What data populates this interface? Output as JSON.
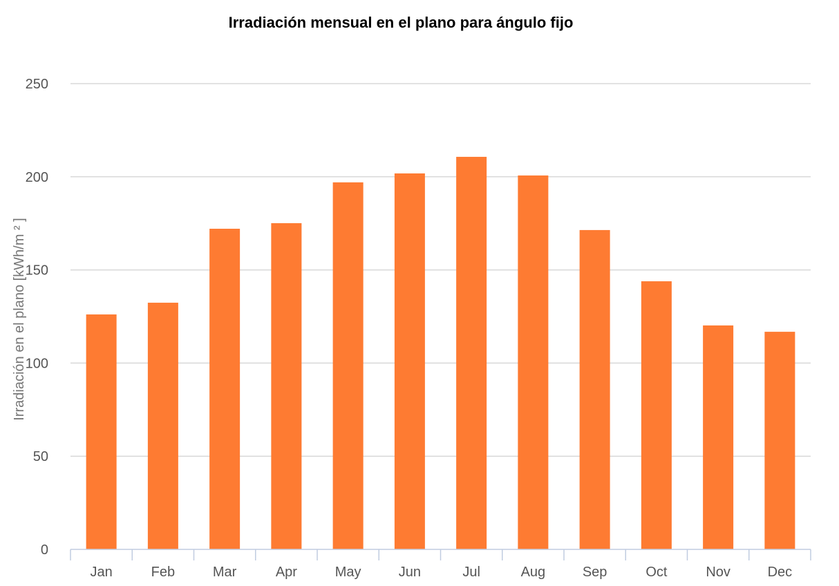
{
  "chart_data": {
    "type": "bar",
    "title": "Irradiación mensual en el plano para ángulo fijo",
    "xlabel": "",
    "ylabel": "Irradiación en el plano [kWh/m ² ]",
    "categories": [
      "Jan",
      "Feb",
      "Mar",
      "Apr",
      "May",
      "Jun",
      "Jul",
      "Aug",
      "Sep",
      "Oct",
      "Nov",
      "Dec"
    ],
    "values": [
      126.1,
      132.4,
      172.1,
      175.1,
      197.0,
      201.8,
      210.7,
      200.7,
      171.4,
      143.9,
      120.2,
      116.8
    ],
    "ylim": [
      0,
      250
    ],
    "yticks": [
      0,
      50,
      100,
      150,
      200,
      250
    ],
    "grid": true,
    "legend": "none",
    "bar_color": "#fe7b32",
    "grid_color": "#d8d8d8",
    "axis_color": "#c0cce0"
  }
}
